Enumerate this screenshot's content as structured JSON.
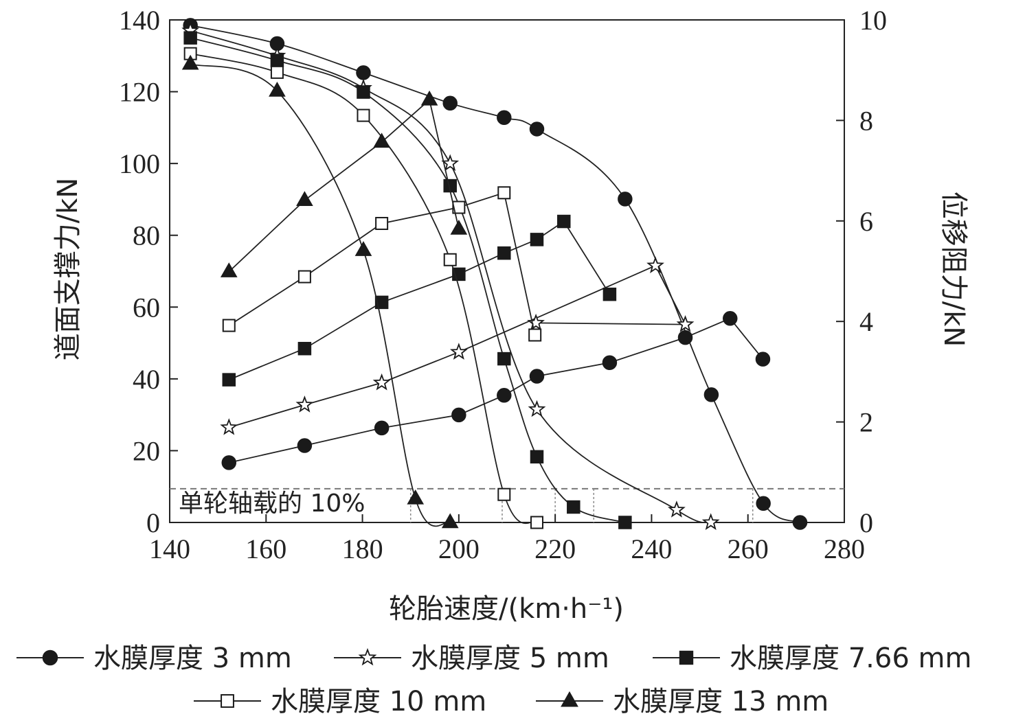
{
  "chart_data": {
    "type": "line",
    "xlabel": "轮胎速度/(km·h⁻¹)",
    "ylabel_left": "道面支撑力/kN",
    "ylabel_right": "位移阻力/kN",
    "xlim": [
      140,
      280
    ],
    "ylim_left": [
      0,
      140
    ],
    "ylim_right": [
      0,
      10
    ],
    "x_ticks": [
      140,
      160,
      180,
      200,
      220,
      240,
      260,
      280
    ],
    "y_left_ticks": [
      0,
      20,
      40,
      60,
      80,
      100,
      120,
      140
    ],
    "y_right_ticks": [
      0,
      2,
      4,
      6,
      8,
      10
    ],
    "grid": false,
    "legend_position": "bottom",
    "reference_line": {
      "y": 9.4,
      "label": "单轮轴载的 10%"
    },
    "intersection_x": [
      190,
      209,
      220,
      228,
      261
    ],
    "series": [
      {
        "name": "水膜厚度 3 mm",
        "marker": "circle-filled",
        "support_x": [
          144.3,
          162.3,
          180.2,
          198.2,
          209.4,
          216.2,
          234.5,
          252.4,
          263.2,
          270.8
        ],
        "support_y": [
          138.5,
          133.4,
          125.3,
          116.8,
          112.8,
          109.6,
          90.1,
          35.6,
          5.3,
          0.0
        ],
        "resistance_x": [
          152.3,
          168.0,
          184.0,
          200.0,
          209.4,
          216.2,
          231.3,
          247.0,
          256.3,
          263.1
        ],
        "resistance_y": [
          1.19,
          1.53,
          1.88,
          2.14,
          2.53,
          2.91,
          3.18,
          3.68,
          4.06,
          3.25
        ]
      },
      {
        "name": "水膜厚度 5 mm",
        "marker": "star-open",
        "support_x": [
          144.3,
          162.3,
          180.2,
          198.2,
          216.2,
          245.2,
          252.3
        ],
        "support_y": [
          137.0,
          130.0,
          121.0,
          100.0,
          31.5,
          3.5,
          0.0
        ],
        "resistance_x": [
          152.3,
          168.0,
          184.0,
          200.0,
          240.8,
          247.0,
          216.0
        ],
        "resistance_y": [
          1.89,
          2.34,
          2.78,
          3.39,
          5.11,
          3.94,
          3.97
        ]
      },
      {
        "name": "水膜厚度 7.66 mm",
        "marker": "square-filled",
        "support_x": [
          144.3,
          162.3,
          180.2,
          198.2,
          209.4,
          216.2,
          223.8,
          234.5
        ],
        "support_y": [
          135.0,
          128.7,
          119.9,
          93.8,
          45.6,
          18.3,
          4.3,
          0.0
        ],
        "resistance_x": [
          152.3,
          168.0,
          184.0,
          200.0,
          209.4,
          216.2,
          221.8,
          231.3
        ],
        "resistance_y": [
          2.84,
          3.46,
          4.38,
          4.94,
          5.36,
          5.63,
          5.99,
          4.54
        ]
      },
      {
        "name": "水膜厚度 10 mm",
        "marker": "square-open",
        "support_x": [
          144.3,
          162.3,
          180.2,
          198.2,
          209.4,
          216.2
        ],
        "support_y": [
          130.6,
          125.4,
          113.4,
          73.2,
          7.8,
          0.0
        ],
        "resistance_x": [
          152.3,
          168.0,
          184.0,
          200.0,
          209.4,
          215.8
        ],
        "resistance_y": [
          3.92,
          4.89,
          5.95,
          6.27,
          6.56,
          3.73
        ]
      },
      {
        "name": "水膜厚度 13 mm",
        "marker": "triangle-filled",
        "support_x": [
          144.3,
          162.3,
          180.2,
          191.0,
          198.2
        ],
        "support_y": [
          127.7,
          120.2,
          75.8,
          6.6,
          0.0
        ],
        "resistance_x": [
          152.3,
          168.0,
          184.0,
          193.9,
          200.0
        ],
        "resistance_y": [
          4.99,
          6.41,
          7.57,
          8.41,
          5.84
        ]
      }
    ]
  }
}
